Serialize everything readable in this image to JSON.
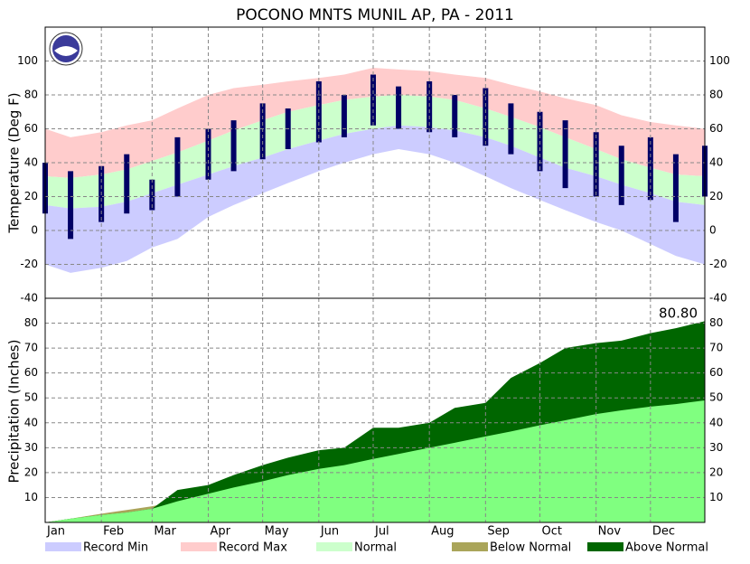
{
  "chart_data": [
    {
      "type": "range",
      "title": "POCONO MNTS MUNIL AP, PA - 2011",
      "ylabel": "Temperature (Deg F)",
      "x": [
        1,
        15,
        32,
        46,
        60,
        74,
        91,
        105,
        121,
        135,
        152,
        166,
        182,
        196,
        213,
        227,
        244,
        258,
        274,
        288,
        305,
        319,
        335,
        349,
        365
      ],
      "xlim": [
        1,
        365
      ],
      "xticks": [
        {
          "value": 1,
          "label": "Jan"
        },
        {
          "value": 32,
          "label": "Feb"
        },
        {
          "value": 60,
          "label": "Mar"
        },
        {
          "value": 91,
          "label": "Apr"
        },
        {
          "value": 121,
          "label": "May"
        },
        {
          "value": 152,
          "label": "Jun"
        },
        {
          "value": 182,
          "label": "Jul"
        },
        {
          "value": 213,
          "label": "Aug"
        },
        {
          "value": 244,
          "label": "Sep"
        },
        {
          "value": 274,
          "label": "Oct"
        },
        {
          "value": 305,
          "label": "Nov"
        },
        {
          "value": 335,
          "label": "Dec"
        }
      ],
      "ylim": [
        -40,
        120
      ],
      "yticks": [
        -40,
        -20,
        0,
        20,
        40,
        60,
        80,
        100
      ],
      "grid": true,
      "series": [
        {
          "name": "Record Min",
          "color": "#ccccff",
          "values": [
            -20,
            -25,
            -22,
            -18,
            -10,
            -5,
            8,
            15,
            22,
            28,
            35,
            40,
            45,
            48,
            45,
            40,
            32,
            25,
            18,
            12,
            5,
            0,
            -8,
            -15,
            -20
          ]
        },
        {
          "name": "Record Max",
          "color": "#ffcccc",
          "values": [
            60,
            55,
            58,
            62,
            65,
            72,
            80,
            84,
            86,
            88,
            90,
            92,
            96,
            95,
            94,
            92,
            90,
            86,
            82,
            78,
            74,
            68,
            64,
            62,
            60
          ]
        },
        {
          "name": "Normal",
          "color": "#ccffcc",
          "low": [
            15,
            13,
            14,
            17,
            22,
            27,
            33,
            38,
            43,
            48,
            53,
            57,
            60,
            62,
            61,
            59,
            55,
            50,
            43,
            37,
            32,
            27,
            22,
            17,
            15
          ],
          "high": [
            32,
            31,
            33,
            36,
            41,
            46,
            53,
            59,
            65,
            70,
            74,
            77,
            79,
            80,
            79,
            77,
            72,
            67,
            61,
            55,
            48,
            42,
            37,
            33,
            32
          ]
        }
      ],
      "observed": {
        "color": "#000066",
        "low": [
          10,
          -5,
          5,
          10,
          12,
          20,
          30,
          35,
          42,
          48,
          52,
          55,
          62,
          60,
          58,
          55,
          50,
          45,
          35,
          25,
          20,
          15,
          18,
          5,
          20
        ],
        "high": [
          40,
          35,
          38,
          45,
          30,
          55,
          60,
          65,
          75,
          72,
          88,
          80,
          92,
          85,
          88,
          80,
          84,
          75,
          70,
          65,
          58,
          50,
          55,
          45,
          50
        ]
      }
    },
    {
      "type": "cumulative",
      "ylabel": "Precipitation (Inches)",
      "x": [
        1,
        15,
        32,
        46,
        60,
        74,
        91,
        105,
        121,
        135,
        152,
        166,
        182,
        196,
        213,
        227,
        244,
        258,
        274,
        288,
        305,
        319,
        335,
        349,
        365
      ],
      "xlim": [
        1,
        365
      ],
      "xticks": [
        {
          "value": 1,
          "label": "Jan"
        },
        {
          "value": 32,
          "label": "Feb"
        },
        {
          "value": 60,
          "label": "Mar"
        },
        {
          "value": 91,
          "label": "Apr"
        },
        {
          "value": 121,
          "label": "May"
        },
        {
          "value": 152,
          "label": "Jun"
        },
        {
          "value": 182,
          "label": "Jul"
        },
        {
          "value": 213,
          "label": "Aug"
        },
        {
          "value": 244,
          "label": "Sep"
        },
        {
          "value": 274,
          "label": "Oct"
        },
        {
          "value": 305,
          "label": "Nov"
        },
        {
          "value": 335,
          "label": "Dec"
        }
      ],
      "ylim": [
        0,
        90
      ],
      "yticks": [
        10,
        20,
        30,
        40,
        50,
        60,
        70,
        80
      ],
      "grid": true,
      "annotation": "80.80",
      "normal": {
        "color": "#80ff80",
        "values": [
          0,
          1.5,
          3.5,
          5,
          6.5,
          8.5,
          11.5,
          14,
          16.5,
          19,
          21.5,
          23,
          25.5,
          27.5,
          30,
          32,
          34.5,
          36.5,
          39,
          41,
          43.5,
          45,
          46.5,
          47.5,
          49
        ]
      },
      "observed": {
        "values": [
          0,
          1.5,
          3,
          4,
          5.5,
          13,
          15,
          19,
          23,
          26,
          29,
          30,
          38,
          38,
          40,
          46,
          48,
          58,
          64,
          70,
          72,
          73,
          76,
          78,
          80.8
        ]
      },
      "series": [
        {
          "name": "Below Normal",
          "color": "#aaa55a"
        },
        {
          "name": "Above Normal",
          "color": "#006600"
        }
      ]
    }
  ]
}
